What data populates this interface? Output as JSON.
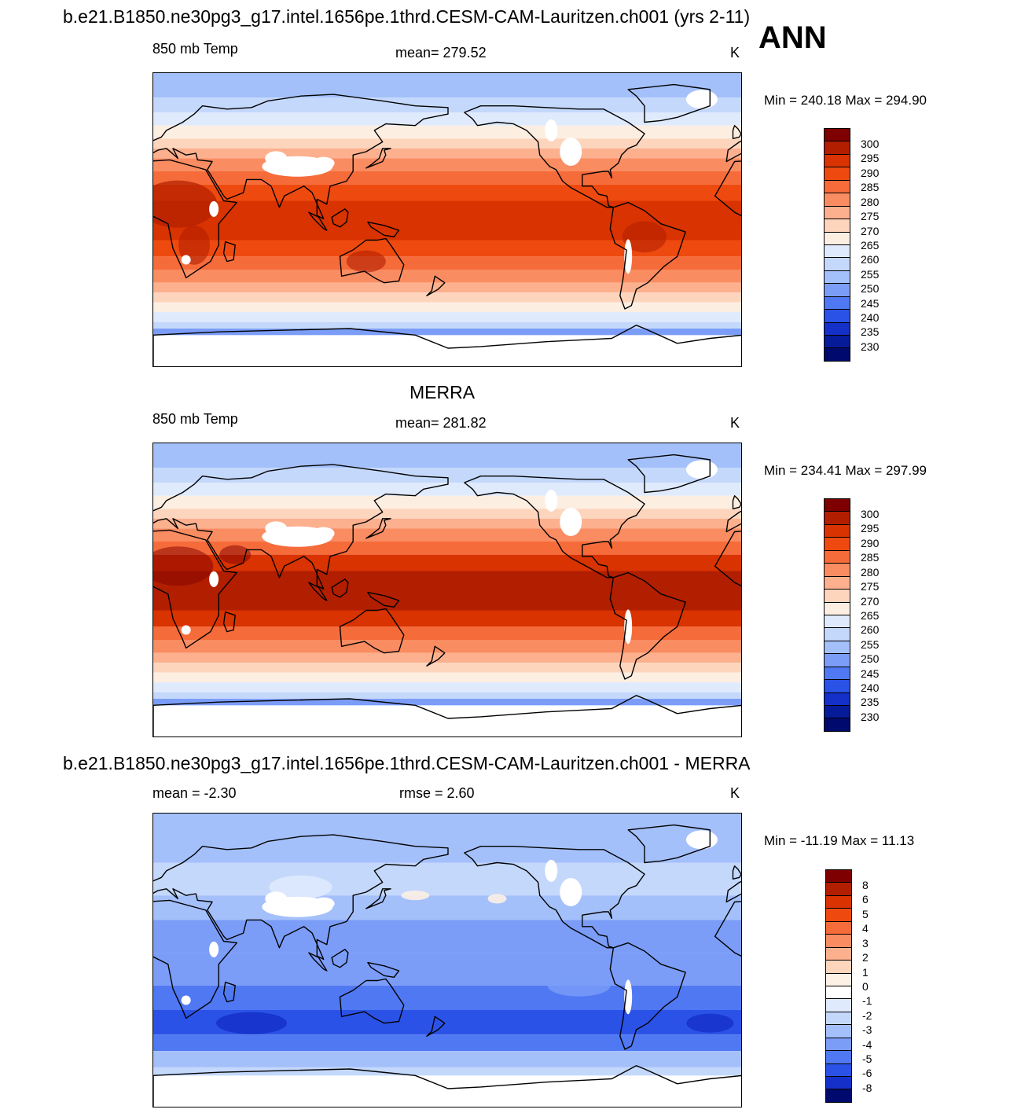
{
  "header": {
    "title": "b.e21.B1850.ne30pg3_g17.intel.1656pe.1thrd.CESM-CAM-Lauritzen.ch001 (yrs 2-11)",
    "season": "ANN"
  },
  "panels": [
    {
      "title": "",
      "left_label": "850 mb Temp",
      "center_label": "mean= 279.52",
      "units": "K",
      "minmax": "Min = 240.18 Max = 294.90",
      "colorbar_labels": [
        "300",
        "295",
        "290",
        "285",
        "280",
        "275",
        "270",
        "265",
        "260",
        "255",
        "250",
        "245",
        "240",
        "235",
        "230"
      ]
    },
    {
      "title": "MERRA",
      "left_label": "850 mb Temp",
      "center_label": "mean= 281.82",
      "units": "K",
      "minmax": "Min = 234.41 Max = 297.99",
      "colorbar_labels": [
        "300",
        "295",
        "290",
        "285",
        "280",
        "275",
        "270",
        "265",
        "260",
        "255",
        "250",
        "245",
        "240",
        "235",
        "230"
      ]
    },
    {
      "title": "b.e21.B1850.ne30pg3_g17.intel.1656pe.1thrd.CESM-CAM-Lauritzen.ch001 - MERRA",
      "left_label": "mean =  -2.30",
      "center_label": "rmse =   2.60",
      "units": "K",
      "minmax": "Min = -11.19 Max =  11.13",
      "colorbar_labels": [
        "8",
        "6",
        "5",
        "4",
        "3",
        "2",
        "1",
        "0",
        "-1",
        "-2",
        "-3",
        "-4",
        "-5",
        "-6",
        "-8"
      ]
    }
  ],
  "colors": {
    "temp_scale": [
      "#7f0000",
      "#b21e00",
      "#d83300",
      "#ee4a10",
      "#f66b3a",
      "#fa8c62",
      "#fcb08e",
      "#fdd5bd",
      "#fdeee2",
      "#dfeafd",
      "#c4d8fc",
      "#a4c0fb",
      "#7b9df8",
      "#5078f2",
      "#2a52e6",
      "#1530c8",
      "#061b9a",
      "#000a6e"
    ],
    "diff_scale": [
      "#7f0000",
      "#b21e00",
      "#d83300",
      "#ee4a10",
      "#f66b3a",
      "#fa8c62",
      "#fcb08e",
      "#fdd5bd",
      "#fdf0e4",
      "#ffffff",
      "#dfeafd",
      "#c4d8fc",
      "#a4c0fb",
      "#7b9df8",
      "#5078f2",
      "#2a52e6",
      "#1530c8",
      "#000a6e"
    ],
    "land_mask": "#ffffff",
    "coastline": "#000000"
  }
}
